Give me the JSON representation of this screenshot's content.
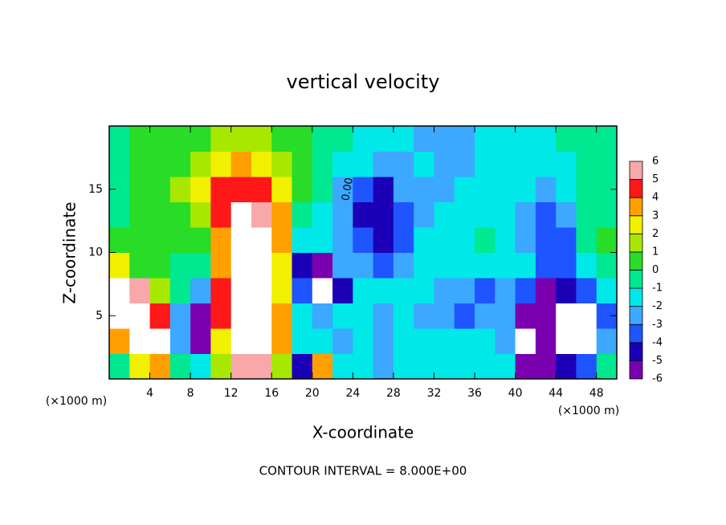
{
  "chart_data": {
    "type": "heatmap",
    "title": "vertical velocity",
    "xlabel": "X-coordinate",
    "ylabel": "Z-coordinate",
    "x_unit_left": "(×1000 m)",
    "x_unit_right": "(×1000 m)",
    "footer": "CONTOUR INTERVAL = 8.000E+00",
    "annotation": {
      "text": "0.00",
      "x": 23.5,
      "y": 15
    },
    "xlim": [
      0,
      50
    ],
    "ylim": [
      0,
      20
    ],
    "xticks": [
      4,
      8,
      12,
      16,
      20,
      24,
      28,
      32,
      36,
      40,
      44,
      48
    ],
    "yticks": [
      5,
      10,
      15
    ],
    "x": [
      1,
      3,
      5,
      7,
      9,
      11,
      13,
      15,
      17,
      19,
      21,
      23,
      25,
      27,
      29,
      31,
      33,
      35,
      37,
      39,
      41,
      43,
      45,
      47,
      49
    ],
    "y": [
      1,
      3,
      5,
      7,
      9,
      11,
      13,
      15,
      17,
      19
    ],
    "z": [
      [
        0,
        3,
        4,
        0,
        -1,
        2,
        6,
        6,
        2,
        -4,
        4,
        -1,
        -1,
        -2,
        -1,
        -1,
        -1,
        -1,
        -1,
        -1,
        -5,
        -5,
        -4,
        -3,
        0
      ],
      [
        4,
        7,
        7,
        -2,
        -5,
        3,
        7,
        7,
        4,
        -1,
        -1,
        -2,
        -1,
        -2,
        -1,
        -1,
        -1,
        -1,
        -1,
        -2,
        -7,
        -5,
        -7,
        -7,
        -2
      ],
      [
        7,
        7,
        5,
        -2,
        -5,
        5,
        7,
        7,
        4,
        -1,
        -2,
        -1,
        -1,
        -2,
        -1,
        -2,
        -2,
        -3,
        -2,
        -2,
        -5,
        -5,
        -7,
        -7,
        -3
      ],
      [
        7,
        6,
        2,
        0,
        -2,
        5,
        7,
        7,
        3,
        -3,
        -7,
        -4,
        -1,
        -1,
        -1,
        -1,
        -2,
        -2,
        -3,
        -2,
        -3,
        -5,
        -4,
        -3,
        -1
      ],
      [
        3,
        1,
        1,
        0,
        0,
        4,
        7,
        7,
        3,
        -4,
        -5,
        -2,
        -2,
        -3,
        -2,
        -1,
        -1,
        -1,
        -1,
        -1,
        -1,
        -3,
        -3,
        -1,
        0
      ],
      [
        1,
        1,
        1,
        1,
        1,
        4,
        7,
        7,
        4,
        -1,
        -1,
        -2,
        -3,
        -4,
        -3,
        -1,
        -1,
        -1,
        0,
        -1,
        -2,
        -3,
        -3,
        0,
        1
      ],
      [
        0,
        1,
        1,
        1,
        2,
        5,
        7,
        6,
        4,
        0,
        -1,
        -2,
        -4,
        -4,
        -3,
        -2,
        -1,
        -1,
        -1,
        -1,
        -2,
        -3,
        -2,
        0,
        0
      ],
      [
        0,
        1,
        1,
        2,
        3,
        5,
        5,
        5,
        3,
        1,
        0,
        -2,
        -3,
        -4,
        -2,
        -2,
        -2,
        -1,
        -1,
        -1,
        -1,
        -2,
        -1,
        0,
        0
      ],
      [
        0,
        1,
        1,
        1,
        2,
        3,
        4,
        3,
        2,
        1,
        0,
        -1,
        -1,
        -2,
        -2,
        -1,
        -2,
        -2,
        -1,
        -1,
        -1,
        -1,
        -1,
        0,
        0
      ],
      [
        0,
        1,
        1,
        1,
        1,
        2,
        2,
        2,
        1,
        1,
        0,
        0,
        -1,
        -1,
        -1,
        -2,
        -2,
        -2,
        -1,
        -1,
        -1,
        -1,
        0,
        0,
        0
      ]
    ],
    "colorbar": {
      "levels": [
        -6,
        -5,
        -4,
        -3,
        -2,
        -1,
        0,
        1,
        2,
        3,
        4,
        5,
        6
      ],
      "colors": [
        "#7a00b0",
        "#1c00b8",
        "#1f55ff",
        "#3ca8ff",
        "#00e8e8",
        "#00e890",
        "#28dc28",
        "#a8e800",
        "#f0f000",
        "#ffa000",
        "#ff1818",
        "#f8a8a8"
      ],
      "out_of_range_color": "#ffffff"
    }
  }
}
